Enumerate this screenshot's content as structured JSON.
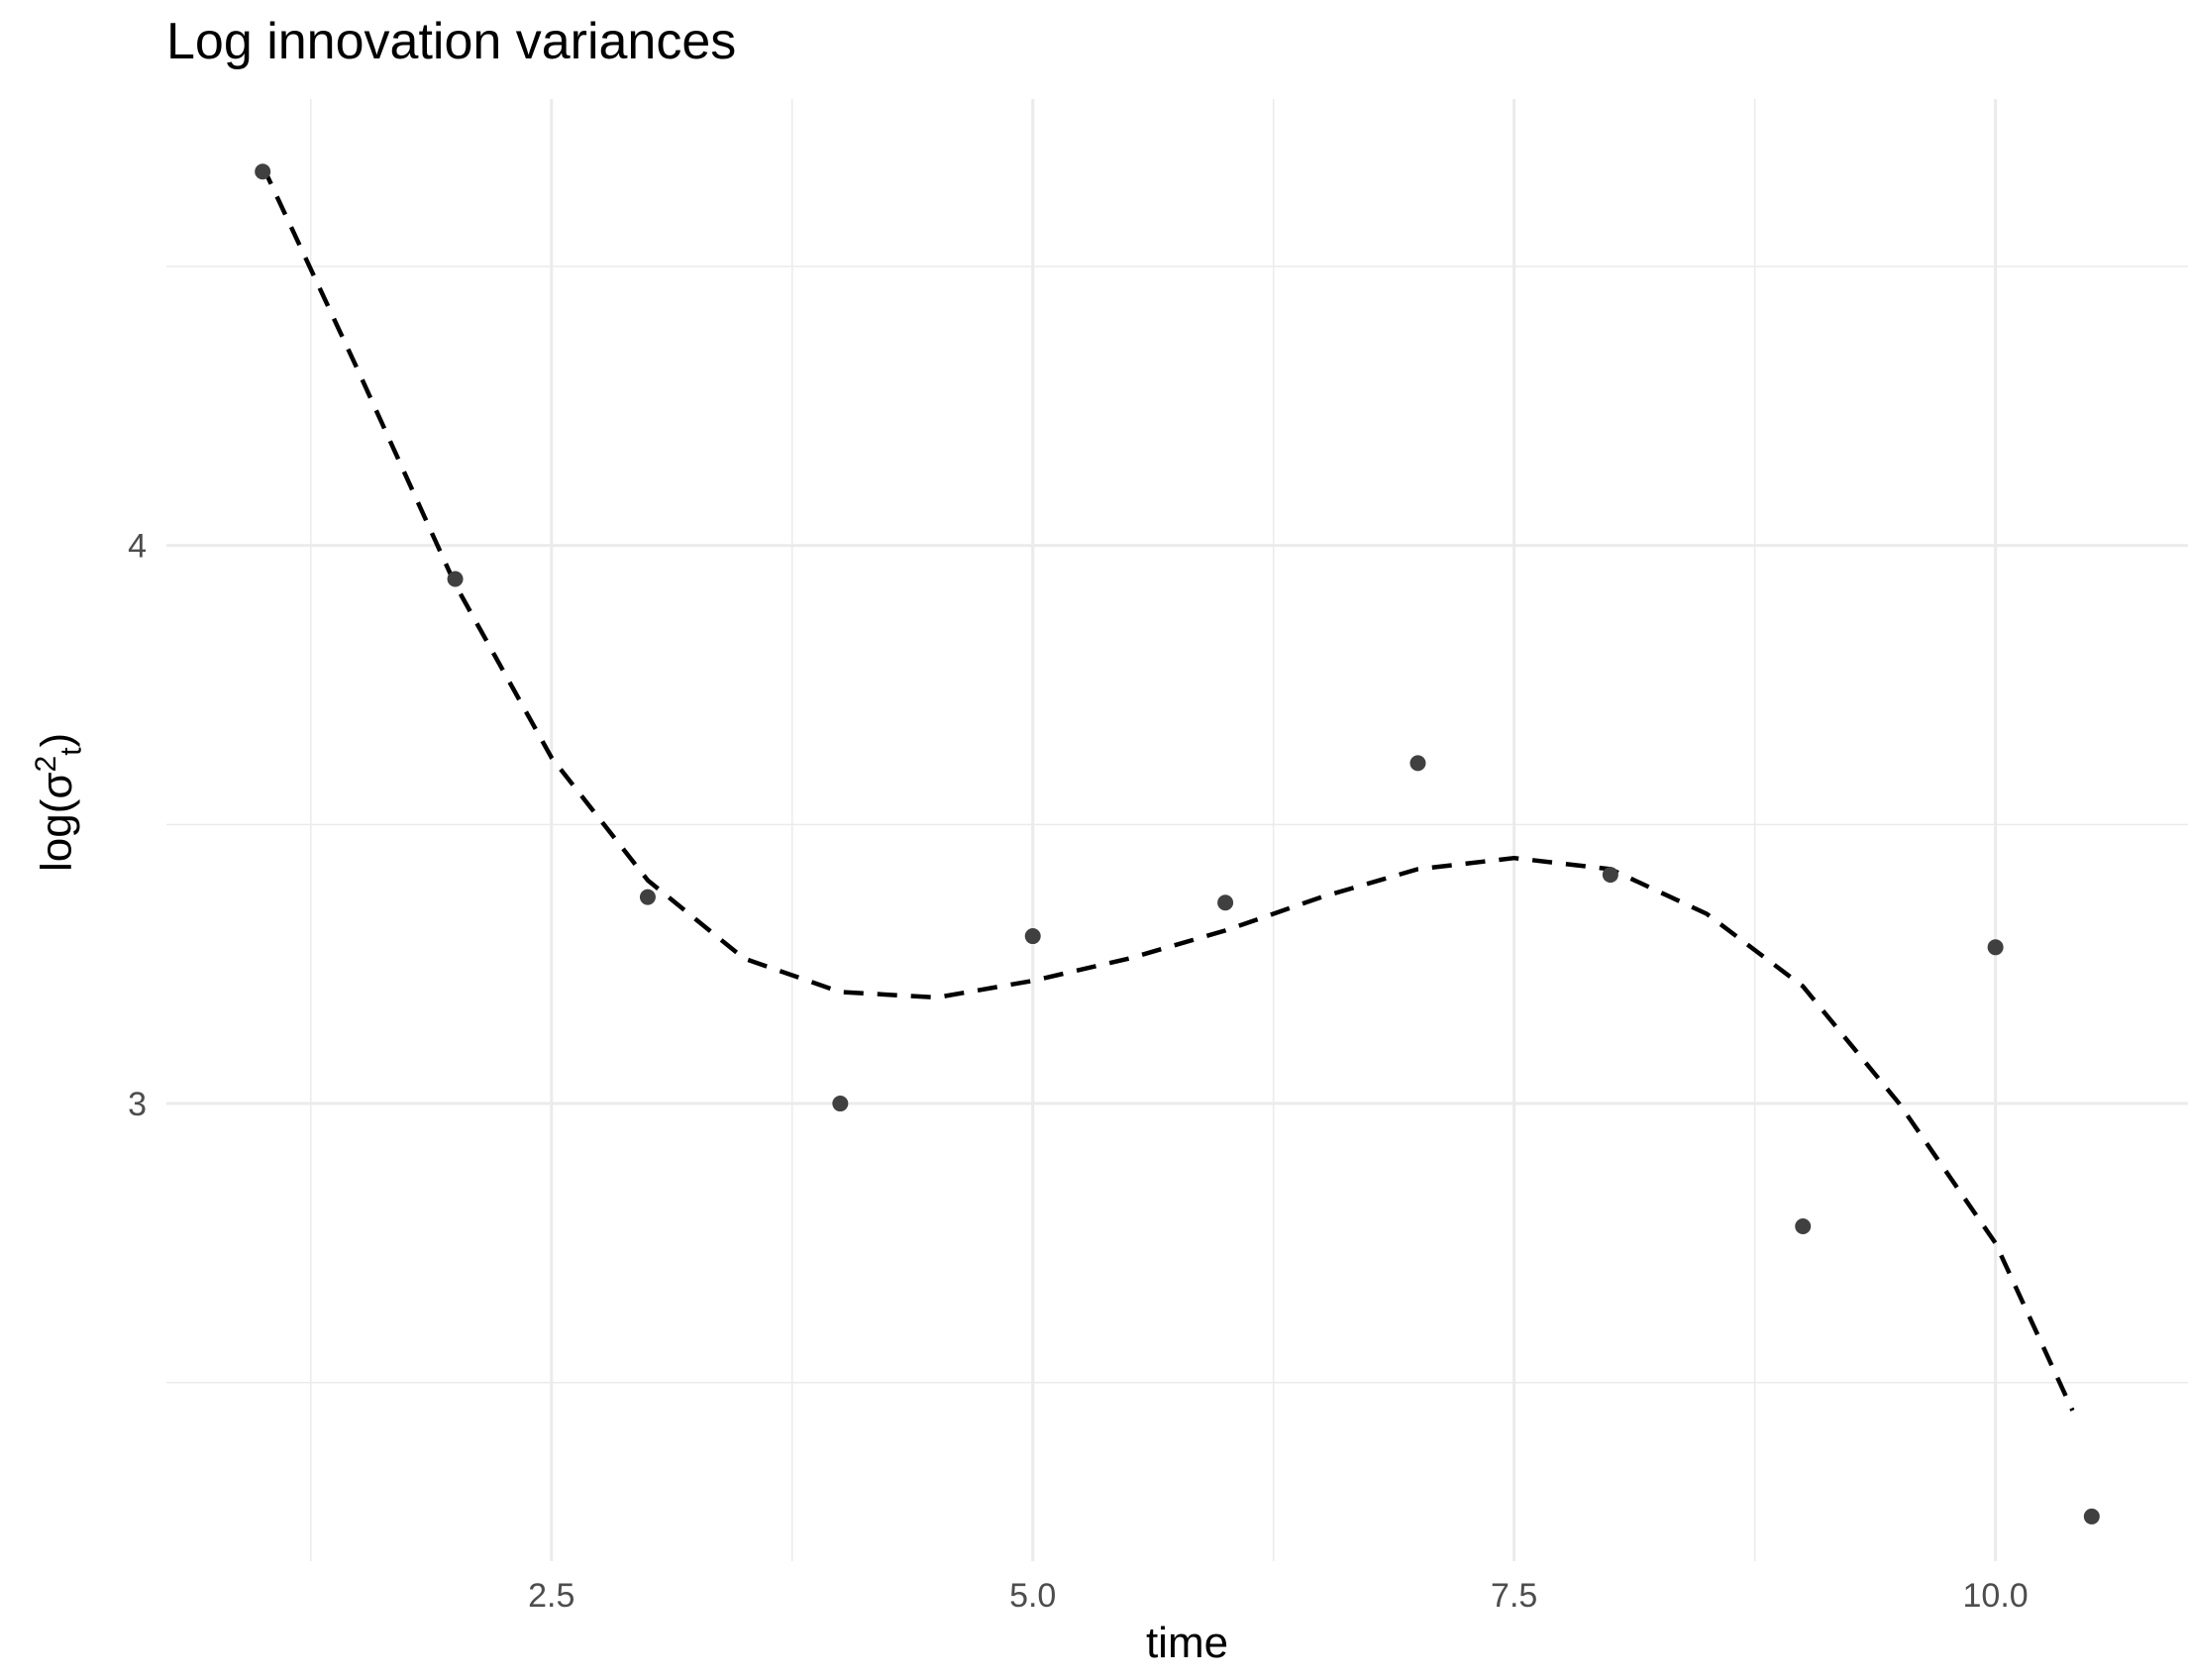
{
  "chart_data": {
    "type": "scatter",
    "title": "Log innovation variances",
    "xlabel": "time",
    "ylabel": {
      "prefix": "log(",
      "symbol": "σ",
      "superscript": "2",
      "subscript": "t",
      "suffix": ")"
    },
    "xlim": [
      0.5,
      11.0
    ],
    "ylim": [
      2.18,
      4.8
    ],
    "x_ticks": [
      2.5,
      5.0,
      7.5,
      10.0
    ],
    "x_tick_labels": [
      "2.5",
      "5.0",
      "7.5",
      "10.0"
    ],
    "x_minor_ticks": [
      1.25,
      3.75,
      6.25,
      8.75
    ],
    "y_ticks": [
      3,
      4
    ],
    "y_tick_labels": [
      "3",
      "4"
    ],
    "y_minor_ticks": [
      2.5,
      3.5,
      4.5
    ],
    "grid": true,
    "legend": "none",
    "series": [
      {
        "kind": "points",
        "color": "#404040",
        "x": [
          1,
          2,
          3,
          4,
          5,
          6,
          7,
          8,
          9,
          10,
          10.5
        ],
        "y": [
          4.67,
          3.94,
          3.37,
          3.0,
          3.3,
          3.36,
          3.61,
          3.41,
          2.78,
          3.28,
          2.26
        ]
      },
      {
        "kind": "dashed-line",
        "color": "#000000",
        "x": [
          1,
          1.5,
          2,
          2.5,
          3,
          3.5,
          4,
          4.5,
          5,
          5.5,
          6,
          6.5,
          7,
          7.5,
          8,
          8.5,
          9,
          9.5,
          10,
          10.4
        ],
        "y": [
          4.68,
          4.31,
          3.93,
          3.62,
          3.4,
          3.26,
          3.2,
          3.19,
          3.22,
          3.26,
          3.31,
          3.37,
          3.42,
          3.44,
          3.42,
          3.34,
          3.21,
          3.0,
          2.75,
          2.45
        ]
      }
    ]
  }
}
